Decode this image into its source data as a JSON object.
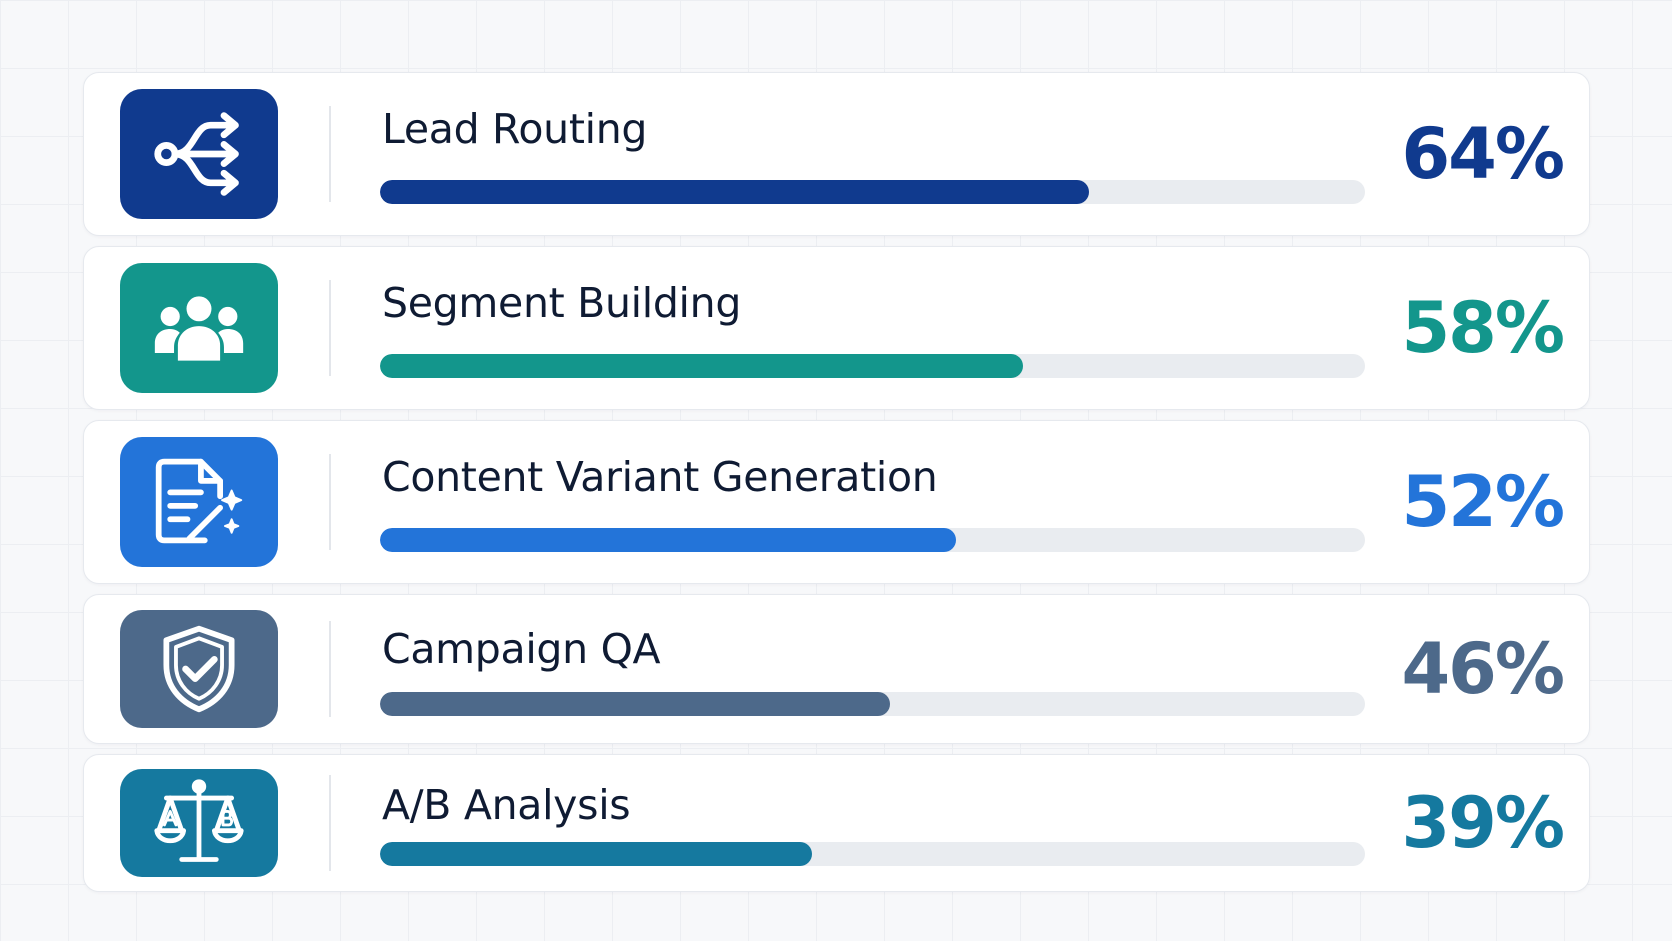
{
  "chart_data": {
    "type": "bar",
    "orientation": "horizontal",
    "categories": [
      "Lead Routing",
      "Segment Building",
      "Content Variant Generation",
      "Campaign QA",
      "A/B Analysis"
    ],
    "values": [
      64,
      58,
      52,
      46,
      39
    ],
    "value_labels": [
      "64%",
      "58%",
      "52%",
      "46%",
      "39%"
    ],
    "xlim": [
      0,
      100
    ],
    "grid": false,
    "colors": [
      "#103a8e",
      "#13968c",
      "#2374d9",
      "#4d698a",
      "#15799f"
    ],
    "icons": [
      "branching-arrows-icon",
      "people-group-icon",
      "document-wand-icon",
      "shield-check-icon",
      "scales-ab-icon"
    ]
  }
}
